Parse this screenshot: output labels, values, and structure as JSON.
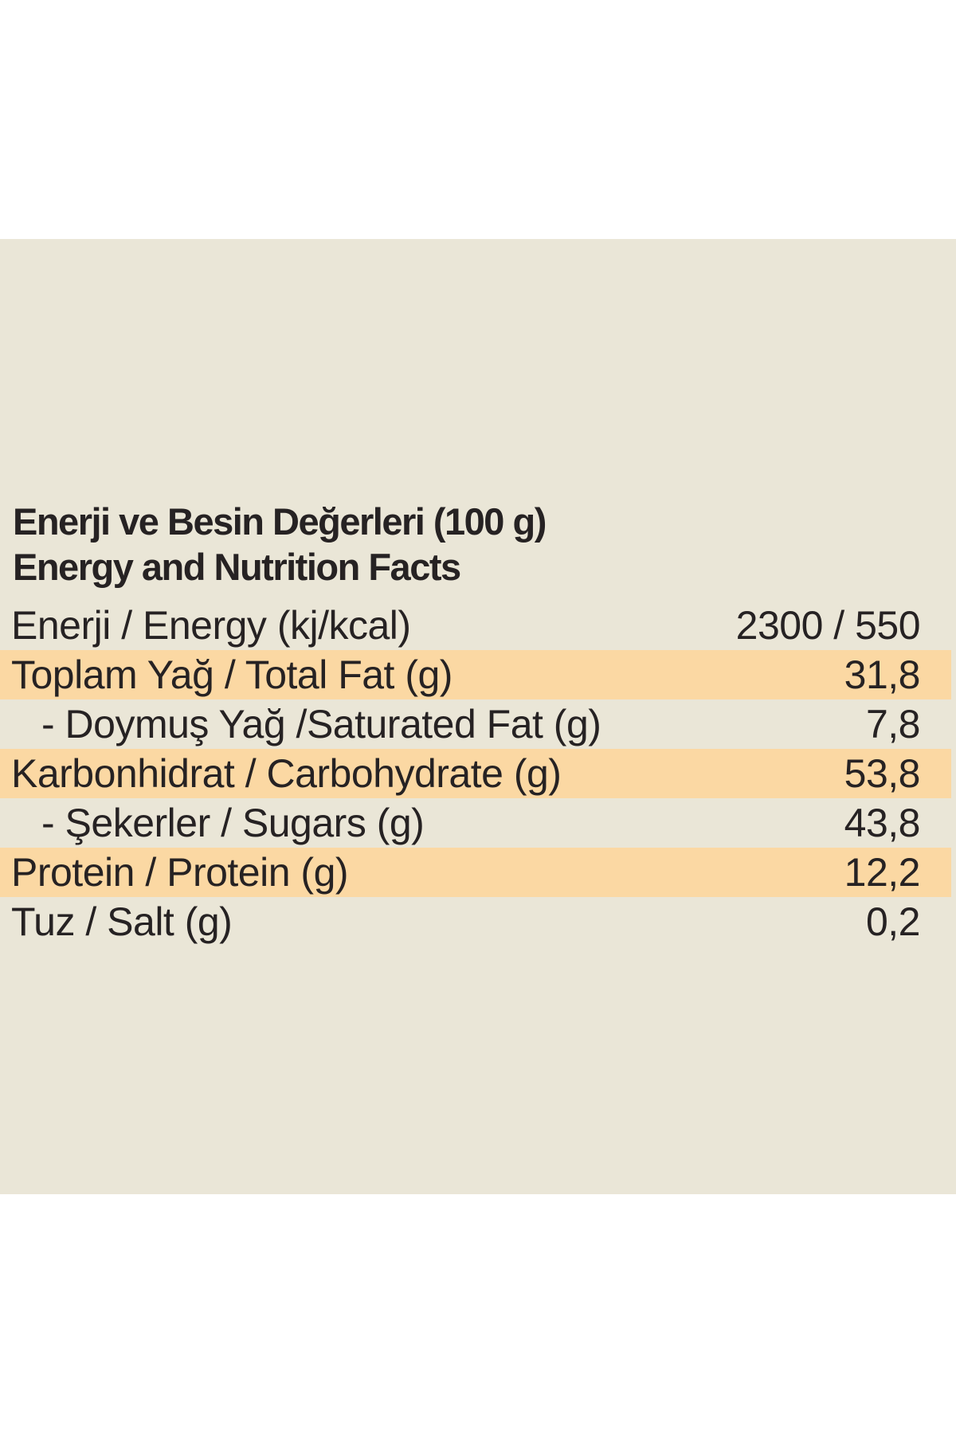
{
  "label": {
    "title": {
      "line1": "Enerji ve Besin Değerleri (100 g)",
      "line2": "Energy and Nutrition Facts"
    },
    "rows": [
      {
        "name": "Enerji / Energy (kj/kcal)",
        "value": "2300 / 550",
        "highlight": false,
        "indent": false
      },
      {
        "name": "Toplam Yağ / Total Fat (g)",
        "value": "31,8",
        "highlight": true,
        "indent": false
      },
      {
        "name": "- Doymuş Yağ /Saturated Fat (g)",
        "value": "7,8",
        "highlight": false,
        "indent": true
      },
      {
        "name": "Karbonhidrat / Carbohydrate (g)",
        "value": "53,8",
        "highlight": true,
        "indent": false
      },
      {
        "name": "- Şekerler / Sugars (g)",
        "value": "43,8",
        "highlight": false,
        "indent": true
      },
      {
        "name": "Protein / Protein (g)",
        "value": "12,2",
        "highlight": true,
        "indent": false
      },
      {
        "name": "Tuz / Salt (g)",
        "value": "0,2",
        "highlight": false,
        "indent": false
      }
    ],
    "colors": {
      "page_background": "#FFFFFF",
      "label_background": "#EAE6D7",
      "row_highlight": "#FBD8A3",
      "text": "#262223"
    }
  }
}
